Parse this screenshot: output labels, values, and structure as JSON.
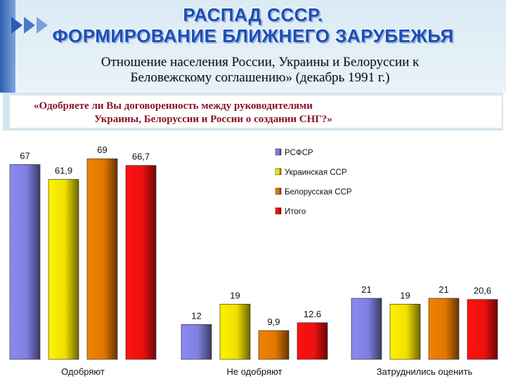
{
  "header": {
    "title_line1": "РАСПАД СССР.",
    "title_line2": "ФОРМИРОВАНИЕ БЛИЖНЕГО ЗАРУБЕЖЬЯ",
    "subtitle_line1": "Отношение населения России, Украины и Белоруссии к",
    "subtitle_line2": "Беловежскому соглашению» (декабрь 1991 г.)"
  },
  "question": {
    "line1": "«Одобряете ли Вы договоренность между руководителями",
    "line2": "Украины, Белоруссии и России о создании СНГ?»"
  },
  "colors": {
    "accent": "#1a4fb8",
    "question_text": "#8b1026",
    "series": [
      "#8080e0",
      "#f0e000",
      "#e07800",
      "#ee1010"
    ]
  },
  "chart_data": {
    "type": "bar",
    "categories": [
      "Одобряют",
      "Не одобряют",
      "Затруднились оценить"
    ],
    "series": [
      {
        "name": "РСФСР",
        "values": [
          67,
          12,
          21
        ],
        "labels": [
          "67",
          "12",
          "21"
        ]
      },
      {
        "name": "Украинская ССР",
        "values": [
          61.9,
          19,
          19
        ],
        "labels": [
          "61,9",
          "19",
          "19"
        ]
      },
      {
        "name": "Белорусская ССР",
        "values": [
          69,
          9.9,
          21
        ],
        "labels": [
          "69",
          "9,9",
          "21"
        ]
      },
      {
        "name": "Итого",
        "values": [
          66.7,
          12.6,
          20.6
        ],
        "labels": [
          "66,7",
          "12.6",
          "20,6"
        ]
      }
    ],
    "ylim": [
      0,
      70
    ],
    "legend": "top-right",
    "grid": false
  }
}
